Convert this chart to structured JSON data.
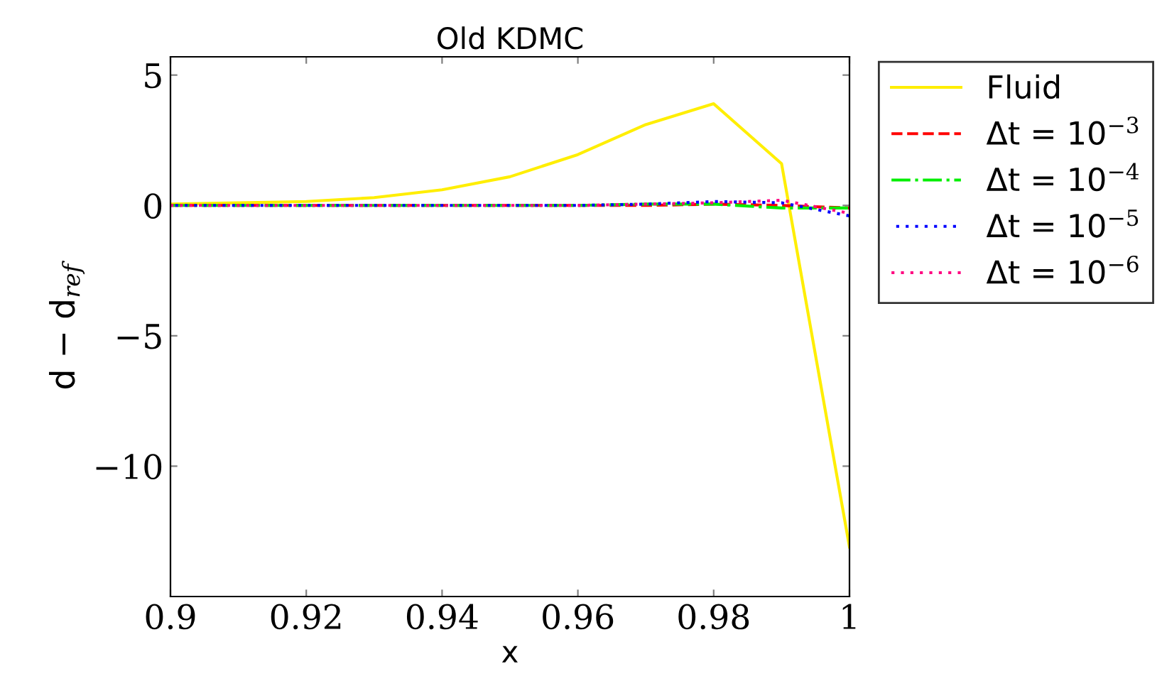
{
  "chart_data": {
    "type": "line",
    "title": "Old KDMC",
    "xlabel": "x",
    "ylabel": "d − d$_{ref}$",
    "x": [
      0.9,
      0.91,
      0.92,
      0.93,
      0.94,
      0.95,
      0.96,
      0.97,
      0.98,
      0.99,
      1.0
    ],
    "series": [
      {
        "name": "Fluid",
        "color": "#ffee00",
        "line_style": "solid",
        "values": [
          0.05,
          0.1,
          0.15,
          0.3,
          0.6,
          1.1,
          1.95,
          3.1,
          3.9,
          1.6,
          -13.1
        ]
      },
      {
        "name": "Δt = 10$^{−3}$",
        "color": "#ff0000",
        "line_style": "dashed",
        "values": [
          0.0,
          0.0,
          0.0,
          0.0,
          0.0,
          0.0,
          0.0,
          0.0,
          0.05,
          0.0,
          -0.1
        ]
      },
      {
        "name": "Δt = 10$^{−4}$",
        "color": "#00ee00",
        "line_style": "dashdot",
        "values": [
          0.0,
          0.0,
          0.0,
          0.0,
          0.0,
          0.0,
          0.0,
          0.05,
          0.05,
          -0.1,
          -0.1
        ]
      },
      {
        "name": "Δt = 10$^{−5}$",
        "color": "#0000ff",
        "line_style": "dotted",
        "values": [
          0.0,
          0.0,
          0.0,
          0.0,
          0.0,
          0.0,
          0.0,
          0.05,
          0.15,
          0.1,
          -0.4
        ]
      },
      {
        "name": "Δt = 10$^{−6}$",
        "color": "#ff0080",
        "line_style": "dotted",
        "values": [
          0.0,
          0.0,
          0.0,
          0.0,
          0.0,
          0.0,
          0.0,
          0.05,
          0.1,
          0.2,
          -0.3
        ]
      }
    ],
    "xlim": [
      0.9,
      1.0
    ],
    "xticks": [
      0.9,
      0.92,
      0.94,
      0.96,
      0.98,
      {
        "value": 1.0,
        "label": "1"
      }
    ],
    "ylim": [
      -15,
      5.7
    ],
    "yticks": [
      {
        "value": -10,
        "label": "−10"
      },
      {
        "value": -5,
        "label": "−5"
      },
      0,
      5
    ],
    "grid": false,
    "legend": "top right",
    "marker": "none"
  }
}
